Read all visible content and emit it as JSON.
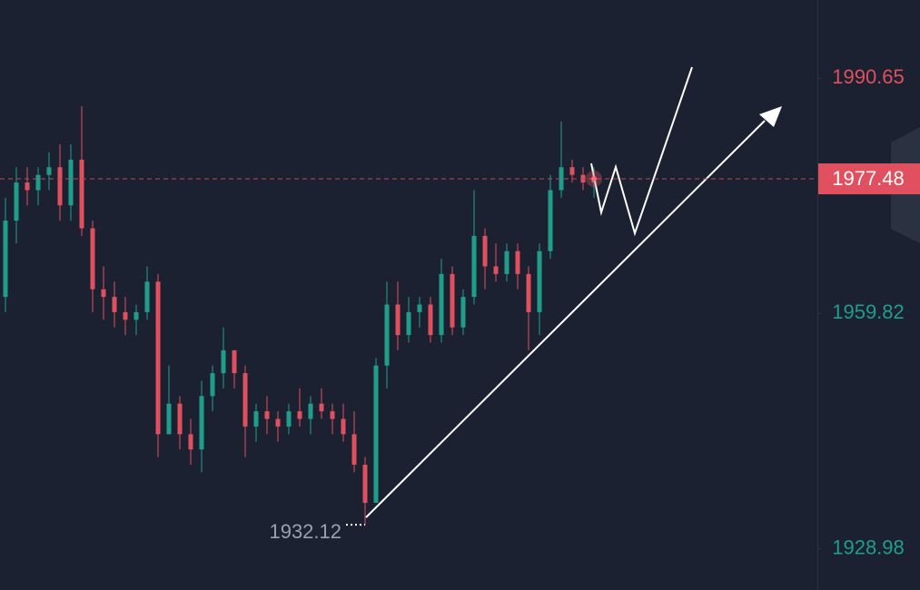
{
  "chart_data": {
    "type": "candlestick",
    "open": [
      1962,
      1972,
      1977,
      1976,
      1978,
      1979,
      1974,
      1980,
      1971,
      1963,
      1962,
      1960,
      1959,
      1960,
      1964,
      1944,
      1948,
      1944,
      1942,
      1949,
      1952,
      1955,
      1952,
      1945,
      1947,
      1946,
      1945,
      1947,
      1946,
      1948,
      1947,
      1946,
      1944,
      1940,
      1935,
      1953,
      1961,
      1957,
      1960,
      1961,
      1957,
      1965,
      1958,
      1962,
      1970,
      1966,
      1965,
      1968,
      1965,
      1960,
      1968,
      1976,
      1979,
      1978,
      1977
    ],
    "high": [
      1975,
      1979,
      1979,
      1979,
      1981,
      1982,
      1982,
      1987,
      1972,
      1966,
      1964,
      1962,
      1961,
      1966,
      1965,
      1953,
      1949,
      1946,
      1951,
      1953,
      1958,
      1955,
      1953,
      1948,
      1949,
      1947,
      1948,
      1950,
      1949,
      1950,
      1948,
      1948,
      1947,
      1941,
      1954,
      1964,
      1964,
      1962,
      1962,
      1962,
      1967,
      1966,
      1963,
      1976,
      1971,
      1969,
      1969,
      1969,
      1966,
      1969,
      1978,
      1985,
      1980,
      1979,
      1979
    ],
    "low": [
      1960,
      1969,
      1974,
      1974,
      1976,
      1972,
      1972,
      1970,
      1960,
      1959,
      1958,
      1957,
      1957,
      1959,
      1941,
      1944,
      1942,
      1940,
      1939,
      1947,
      1950,
      1950,
      1941,
      1943,
      1944,
      1943,
      1944,
      1945,
      1944,
      1946,
      1944,
      1943,
      1939,
      1932.12,
      1935,
      1950,
      1955,
      1956,
      1958,
      1956,
      1956,
      1957,
      1957,
      1961,
      1963,
      1964,
      1964,
      1963,
      1955,
      1957,
      1967,
      1975,
      1977,
      1976,
      1975
    ],
    "close": [
      1972,
      1977,
      1976,
      1978,
      1979,
      1974,
      1980,
      1971,
      1963,
      1962,
      1960,
      1959,
      1960,
      1964,
      1944,
      1948,
      1944,
      1942,
      1949,
      1952,
      1955,
      1952,
      1945,
      1947,
      1946,
      1945,
      1947,
      1946,
      1948,
      1947,
      1946,
      1944,
      1940,
      1935,
      1953,
      1961,
      1957,
      1960,
      1961,
      1957,
      1965,
      1958,
      1962,
      1970,
      1966,
      1965,
      1968,
      1965,
      1960,
      1968,
      1976,
      1979,
      1978,
      1977,
      1977.48
    ],
    "up_color": "#1f9e8b",
    "down_color": "#e0505e",
    "ylim": [
      1923.57,
      2000.93
    ],
    "yticks": [
      1928.98,
      1959.82,
      1990.65
    ]
  }
}
